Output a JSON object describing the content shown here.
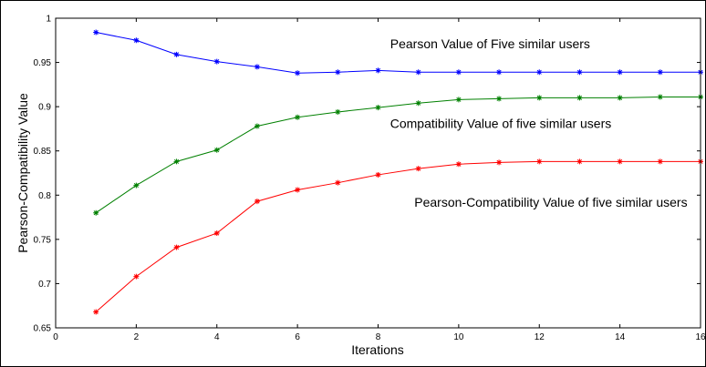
{
  "chart_data": {
    "type": "line",
    "title": "",
    "xlabel": "Iterations",
    "ylabel": "Pearson-Compatibility Value",
    "xlim": [
      0,
      16
    ],
    "ylim": [
      0.65,
      1.0
    ],
    "xticks": [
      "0",
      "2",
      "4",
      "6",
      "8",
      "10",
      "12",
      "14",
      "16"
    ],
    "yticks": [
      "0.65",
      "0.7",
      "0.75",
      "0.8",
      "0.85",
      "0.9",
      "0.95",
      "1"
    ],
    "grid": false,
    "legend": "none",
    "x": [
      1,
      2,
      3,
      4,
      5,
      6,
      7,
      8,
      9,
      10,
      11,
      12,
      13,
      14,
      15,
      16
    ],
    "series": [
      {
        "color": "#0000ff",
        "marker": "star",
        "values": [
          0.984,
          0.975,
          0.959,
          0.951,
          0.945,
          0.938,
          0.939,
          0.941,
          0.939,
          0.939,
          0.939,
          0.939,
          0.939,
          0.939,
          0.939,
          0.939
        ]
      },
      {
        "color": "#008000",
        "marker": "star",
        "values": [
          0.78,
          0.811,
          0.838,
          0.851,
          0.878,
          0.888,
          0.894,
          0.899,
          0.904,
          0.908,
          0.909,
          0.91,
          0.91,
          0.91,
          0.911,
          0.911
        ]
      },
      {
        "color": "#ff0000",
        "marker": "star",
        "values": [
          0.668,
          0.708,
          0.741,
          0.757,
          0.793,
          0.806,
          0.814,
          0.823,
          0.83,
          0.835,
          0.837,
          0.838,
          0.838,
          0.838,
          0.838,
          0.838
        ]
      }
    ],
    "annotations": [
      {
        "text": "Pearson Value of Five similar users",
        "x": 8.3,
        "y": 0.966
      },
      {
        "text": "Compatibility Value of five similar users",
        "x": 8.3,
        "y": 0.876
      },
      {
        "text": "Pearson-Compatibility Value of five similar users",
        "x": 8.9,
        "y": 0.787
      }
    ]
  }
}
